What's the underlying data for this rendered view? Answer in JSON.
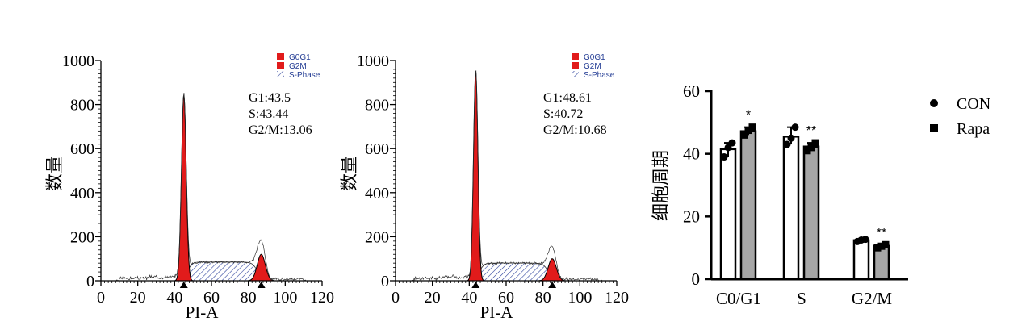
{
  "colors": {
    "peak_fill": "#e11b1b",
    "s_phase_hatch": "#2a3f9b",
    "bar_con": "#ffffff",
    "bar_rapa": "#a6a6a6",
    "axis": "#000000",
    "legend_text": "#233c94"
  },
  "chart_data": [
    {
      "type": "area",
      "title": "",
      "xlabel": "PI-A",
      "ylabel": "数量",
      "xlim": [
        0,
        120
      ],
      "ylim": [
        0,
        1000
      ],
      "xticks": [
        "0",
        "20",
        "40",
        "60",
        "80",
        "100",
        "120"
      ],
      "yticks": [
        "0",
        "200",
        "400",
        "600",
        "800",
        "1000"
      ],
      "legend": [
        {
          "name": "G0G1",
          "style": "solid",
          "icon": "square"
        },
        {
          "name": "G2M",
          "style": "solid",
          "icon": "square"
        },
        {
          "name": "S-Phase",
          "style": "hatched",
          "icon": "hatch"
        }
      ],
      "legend_position": "top-right",
      "stats": [
        "G1:43.5",
        "S:43.44",
        "G2/M:13.06"
      ],
      "g1_peak": {
        "center": 45,
        "height": 840,
        "width": 1.3
      },
      "g2_peak": {
        "center": 87,
        "height": 120,
        "width": 2.2
      },
      "s_phase_level": 85,
      "markers_x": [
        45,
        87
      ]
    },
    {
      "type": "area",
      "title": "",
      "xlabel": "PI-A",
      "ylabel": "数量",
      "xlim": [
        0,
        120
      ],
      "ylim": [
        0,
        1000
      ],
      "xticks": [
        "0",
        "20",
        "40",
        "60",
        "80",
        "100",
        "120"
      ],
      "yticks": [
        "0",
        "200",
        "400",
        "600",
        "800",
        "1000"
      ],
      "legend": [
        {
          "name": "G0G1",
          "style": "solid",
          "icon": "square"
        },
        {
          "name": "G2M",
          "style": "solid",
          "icon": "square"
        },
        {
          "name": "S-Phase",
          "style": "hatched",
          "icon": "hatch"
        }
      ],
      "legend_position": "top-right",
      "stats": [
        "G1:48.61",
        "S:40.72",
        "G2/M:10.68"
      ],
      "g1_peak": {
        "center": 43.5,
        "height": 950,
        "width": 1.2
      },
      "g2_peak": {
        "center": 85,
        "height": 100,
        "width": 2.2
      },
      "s_phase_level": 80,
      "markers_x": [
        43.5,
        85
      ]
    },
    {
      "type": "bar",
      "title": "",
      "xlabel": "",
      "ylabel": "细胞周期",
      "categories": [
        "C0/G1",
        "S",
        "G2/M"
      ],
      "ylim": [
        0,
        60
      ],
      "yticks": [
        "0",
        "20",
        "40",
        "60"
      ],
      "legend_position": "top-right",
      "series": [
        {
          "name": "CON",
          "values": [
            41.5,
            45.5,
            12.4
          ],
          "points": [
            [
              39,
              42,
              43.5
            ],
            [
              43,
              45,
              48.5
            ],
            [
              12,
              12.5,
              12.7
            ]
          ]
        },
        {
          "name": "Rapa",
          "values": [
            47.2,
            42.3,
            10.6
          ],
          "points": [
            [
              46,
              47.5,
              48.5
            ],
            [
              41,
              42,
              43.5
            ],
            [
              10,
              10.5,
              11
            ]
          ]
        }
      ],
      "significance": [
        "*",
        "**",
        "**"
      ]
    }
  ]
}
